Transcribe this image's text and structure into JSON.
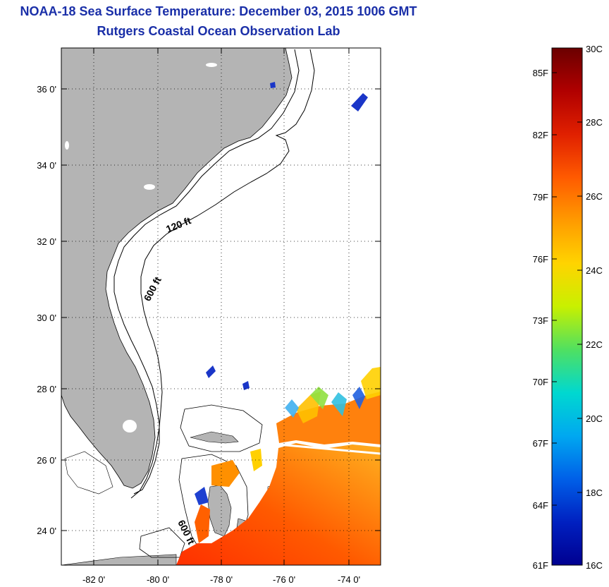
{
  "header": {
    "title": "NOAA-18 Sea Surface Temperature:  December 03, 2015 1006 GMT",
    "subtitle": "Rutgers Coastal Ocean Observation Lab"
  },
  "map": {
    "lat_labels": [
      "36 0'",
      "34 0'",
      "32 0'",
      "30 0'",
      "28 0'",
      "26 0'",
      "24 0'"
    ],
    "lon_labels": [
      "-82 0'",
      "-80 0'",
      "-78 0'",
      "-76 0'",
      "-74 0'"
    ],
    "depth_labels": [
      "120 ft",
      "600 ft",
      "600 ft"
    ],
    "land_color": "#b4b4b4",
    "ocean_color": "#ffffff"
  },
  "colorbar": {
    "fahrenheit_labels": [
      "85F",
      "82F",
      "79F",
      "76F",
      "73F",
      "70F",
      "67F",
      "64F",
      "61F"
    ],
    "celsius_labels": [
      "30C",
      "28C",
      "26C",
      "24C",
      "22C",
      "20C",
      "18C",
      "16C"
    ],
    "gradient_top_to_bottom": [
      "#6b0000",
      "#b00000",
      "#e02000",
      "#ff5a00",
      "#ff9a00",
      "#ffd400",
      "#c8f000",
      "#50e060",
      "#00d8d0",
      "#00a8f0",
      "#0060e8",
      "#0020c0",
      "#000090"
    ]
  }
}
